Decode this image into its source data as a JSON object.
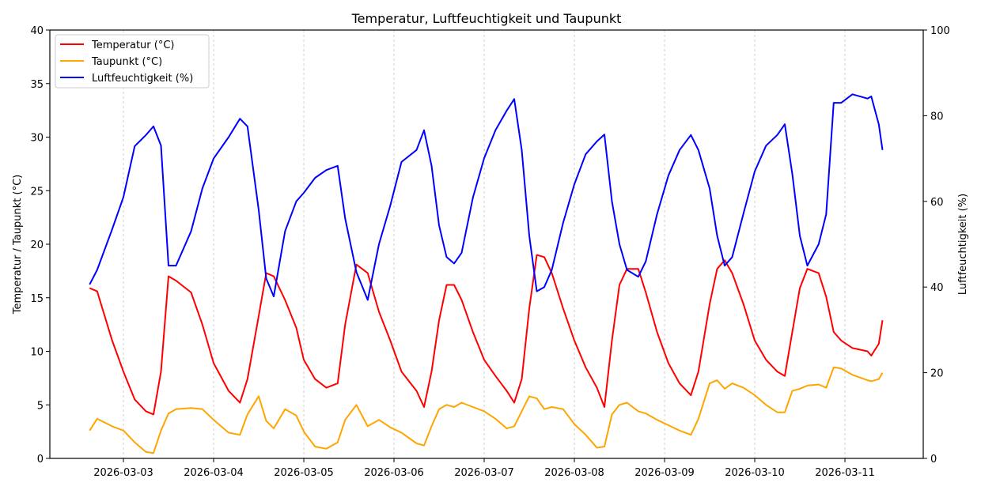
{
  "chart_data": {
    "type": "line",
    "title": "Temperatur, Luftfeuchtigkeit und Taupunkt",
    "xlabel": "",
    "ylabel_left": "Temperatur / Taupunkt (°C)",
    "ylabel_right": "Luftfeuchtigkeit (%)",
    "xlim": [
      "2026-03-02 04:25",
      "2026-03-11 20:50"
    ],
    "ylim_left": [
      0,
      40
    ],
    "ylim_right": [
      0,
      100
    ],
    "x_ticks": [
      "2026-03-03",
      "2026-03-04",
      "2026-03-05",
      "2026-03-06",
      "2026-03-07",
      "2026-03-08",
      "2026-03-09",
      "2026-03-10",
      "2026-03-11"
    ],
    "y_ticks_left": [
      "0",
      "5",
      "10",
      "15",
      "20",
      "25",
      "30",
      "35",
      "40"
    ],
    "y_ticks_right": [
      "0",
      "20",
      "40",
      "60",
      "80",
      "100"
    ],
    "grid": "vertical dashed at x ticks",
    "legend": "top-left",
    "x": [
      "2026-03-02 15:00",
      "2026-03-02 17:00",
      "2026-03-02 21:00",
      "2026-03-03 00:00",
      "2026-03-03 03:00",
      "2026-03-03 06:00",
      "2026-03-03 08:00",
      "2026-03-03 10:00",
      "2026-03-03 12:00",
      "2026-03-03 14:00",
      "2026-03-03 18:00",
      "2026-03-03 21:00",
      "2026-03-04 00:00",
      "2026-03-04 04:00",
      "2026-03-04 07:00",
      "2026-03-04 09:00",
      "2026-03-04 12:00",
      "2026-03-04 14:00",
      "2026-03-04 16:00",
      "2026-03-04 19:00",
      "2026-03-04 22:00",
      "2026-03-05 00:00",
      "2026-03-05 03:00",
      "2026-03-05 06:00",
      "2026-03-05 09:00",
      "2026-03-05 11:00",
      "2026-03-05 14:00",
      "2026-03-05 17:00",
      "2026-03-05 20:00",
      "2026-03-05 23:00",
      "2026-03-06 02:00",
      "2026-03-06 06:00",
      "2026-03-06 08:00",
      "2026-03-06 10:00",
      "2026-03-06 12:00",
      "2026-03-06 14:00",
      "2026-03-06 16:00",
      "2026-03-06 18:00",
      "2026-03-06 21:00",
      "2026-03-07 00:00",
      "2026-03-07 03:00",
      "2026-03-07 06:00",
      "2026-03-07 08:00",
      "2026-03-07 10:00",
      "2026-03-07 12:00",
      "2026-03-07 14:00",
      "2026-03-07 16:00",
      "2026-03-07 18:00",
      "2026-03-07 21:00",
      "2026-03-08 00:00",
      "2026-03-08 03:00",
      "2026-03-08 06:00",
      "2026-03-08 08:00",
      "2026-03-08 10:00",
      "2026-03-08 12:00",
      "2026-03-08 14:00",
      "2026-03-08 17:00",
      "2026-03-08 19:00",
      "2026-03-08 22:00",
      "2026-03-09 01:00",
      "2026-03-09 04:00",
      "2026-03-09 07:00",
      "2026-03-09 09:00",
      "2026-03-09 12:00",
      "2026-03-09 14:00",
      "2026-03-09 16:00",
      "2026-03-09 18:00",
      "2026-03-09 21:00",
      "2026-03-10 00:00",
      "2026-03-10 03:00",
      "2026-03-10 06:00",
      "2026-03-10 08:00",
      "2026-03-10 10:00",
      "2026-03-10 12:00",
      "2026-03-10 14:00",
      "2026-03-10 17:00",
      "2026-03-10 19:00",
      "2026-03-10 21:00",
      "2026-03-10 23:00",
      "2026-03-11 02:00",
      "2026-03-11 06:00",
      "2026-03-11 07:00",
      "2026-03-11 09:00",
      "2026-03-11 10:00"
    ],
    "series": [
      {
        "name": "Temperatur (°C)",
        "axis": "left",
        "color": "#ff0000",
        "values": [
          15.9,
          15.6,
          11,
          8.1,
          5.5,
          4.4,
          4.1,
          8.1,
          17,
          16.6,
          15.5,
          12.5,
          8.9,
          6.3,
          5.2,
          7.4,
          13.3,
          17.3,
          17,
          14.8,
          12.2,
          9.2,
          7.4,
          6.6,
          7,
          12.5,
          18.1,
          17.3,
          13.7,
          11,
          8.1,
          6.3,
          4.8,
          8.1,
          12.9,
          16.2,
          16.2,
          14.8,
          11.8,
          9.2,
          7.7,
          6.3,
          5.2,
          7.4,
          14,
          19,
          18.8,
          17.3,
          14,
          11,
          8.5,
          6.6,
          4.8,
          11,
          16.2,
          17.7,
          17.7,
          15.5,
          11.8,
          8.9,
          7,
          5.9,
          8.1,
          14.4,
          17.7,
          18.5,
          17.3,
          14.4,
          11,
          9.2,
          8.1,
          7.7,
          11.8,
          15.9,
          17.7,
          17.3,
          15.1,
          11.8,
          11,
          10.3,
          10,
          9.6,
          10.7,
          12.9
        ]
      },
      {
        "name": "Taupunkt (°C)",
        "axis": "left",
        "color": "#ffa500",
        "values": [
          2.6,
          3.7,
          3.0,
          2.6,
          1.5,
          0.6,
          0.5,
          2.6,
          4.2,
          4.6,
          4.7,
          4.6,
          3.6,
          2.4,
          2.2,
          4.1,
          5.8,
          3.5,
          2.8,
          4.6,
          4.0,
          2.5,
          1.1,
          0.9,
          1.5,
          3.6,
          5.0,
          3.0,
          3.6,
          2.9,
          2.4,
          1.4,
          1.2,
          3.0,
          4.6,
          5.0,
          4.8,
          5.2,
          4.8,
          4.4,
          3.7,
          2.8,
          3.0,
          4.4,
          5.8,
          5.6,
          4.6,
          4.8,
          4.6,
          3.2,
          2.2,
          1.0,
          1.1,
          4.1,
          5.0,
          5.2,
          4.4,
          4.2,
          3.6,
          3.1,
          2.6,
          2.2,
          3.7,
          7.0,
          7.3,
          6.5,
          7.0,
          6.6,
          5.9,
          5.0,
          4.3,
          4.3,
          6.3,
          6.5,
          6.8,
          6.9,
          6.6,
          8.5,
          8.4,
          7.8,
          7.3,
          7.2,
          7.4,
          8.0
        ]
      },
      {
        "name": "Luftfeuchtigkeit (%)",
        "axis": "right",
        "color": "#0000ff",
        "values": [
          40.6,
          44,
          53.5,
          61,
          72.9,
          75.5,
          77.5,
          73,
          45,
          45,
          53,
          63,
          70,
          75,
          79.3,
          77.5,
          58,
          42,
          37.8,
          53,
          60,
          62,
          65.5,
          67.3,
          68.3,
          56,
          43.5,
          37,
          50,
          59,
          69.2,
          72,
          76.6,
          68.3,
          54.4,
          47,
          45.5,
          48,
          60.9,
          70.1,
          76.6,
          81.2,
          83.9,
          72,
          52,
          39,
          40,
          44,
          55,
          64,
          71,
          74,
          75.6,
          60,
          50,
          44,
          42.4,
          46,
          57,
          66,
          72,
          75.5,
          72,
          63,
          52,
          45,
          47,
          57.2,
          67,
          73,
          75.5,
          78,
          66.4,
          52,
          45,
          50,
          57,
          83,
          83,
          85,
          84,
          84.5,
          78,
          72
        ]
      }
    ]
  }
}
